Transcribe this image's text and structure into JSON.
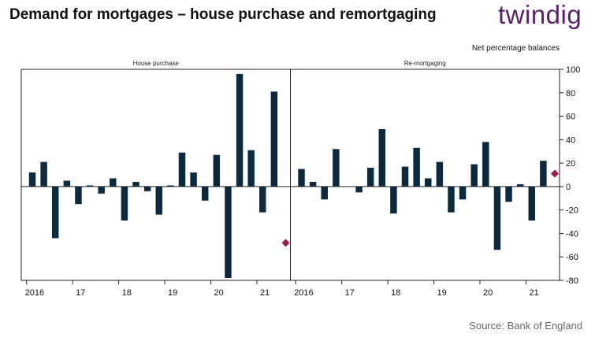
{
  "header": {
    "title": "Demand for mortgages – house purchase and remortgaging",
    "brand": "twindig"
  },
  "footer": {
    "source": "Source: Bank of England"
  },
  "colors": {
    "bar": "#0b2a40",
    "marker": "#9b1b4a",
    "brand": "#5a1f66"
  },
  "chart_data": {
    "type": "bar",
    "units_label": "Net percentage balances",
    "ylim": [
      -80,
      100
    ],
    "yticks": [
      -80,
      -60,
      -40,
      -20,
      0,
      20,
      40,
      60,
      80,
      100
    ],
    "panels": [
      {
        "title": "House purchase",
        "year_ticks": [
          {
            "label": "2016",
            "q": 0
          },
          {
            "label": "17",
            "q": 4
          },
          {
            "label": "18",
            "q": 8
          },
          {
            "label": "19",
            "q": 12
          },
          {
            "label": "20",
            "q": 16
          },
          {
            "label": "21",
            "q": 20
          }
        ],
        "values": [
          12,
          21,
          -44,
          5,
          -15,
          1,
          -6,
          7,
          -29,
          4,
          -4,
          -24,
          1,
          29,
          12,
          -12,
          27,
          -78,
          96,
          31,
          -22,
          81
        ],
        "projection": {
          "q": 22,
          "value": -48
        }
      },
      {
        "title": "Re-mortgaging",
        "year_ticks": [
          {
            "label": "2016",
            "q": 0
          },
          {
            "label": "17",
            "q": 4
          },
          {
            "label": "18",
            "q": 8
          },
          {
            "label": "19",
            "q": 12
          },
          {
            "label": "20",
            "q": 16
          },
          {
            "label": "21",
            "q": 20
          }
        ],
        "values": [
          15,
          4,
          -11,
          32,
          0,
          -5,
          16,
          49,
          -23,
          17,
          33,
          7,
          21,
          -22,
          -11,
          19,
          38,
          -54,
          -13,
          2,
          -29,
          22
        ],
        "projection": {
          "q": 22,
          "value": 11
        }
      }
    ]
  }
}
